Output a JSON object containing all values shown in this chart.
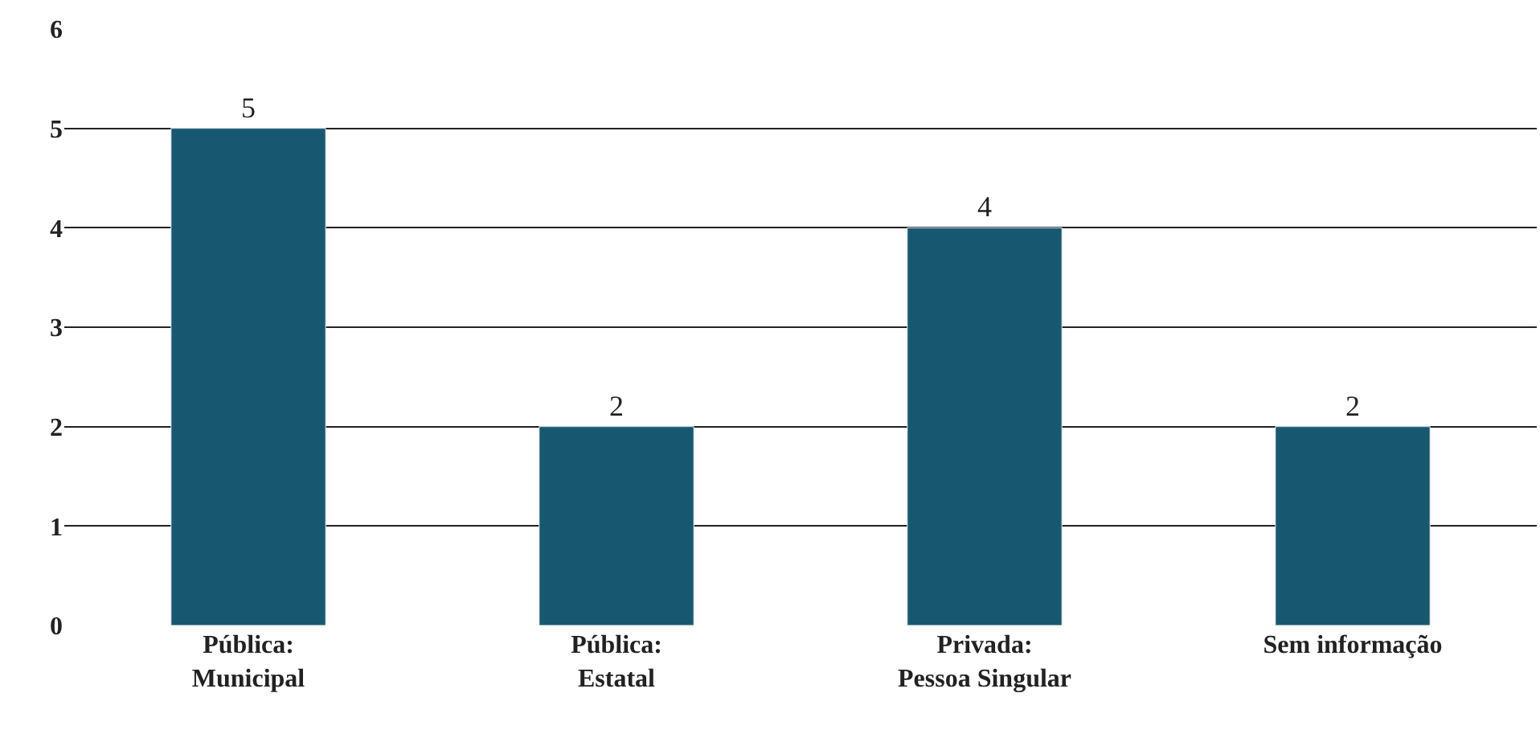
{
  "chart_data": {
    "type": "bar",
    "categories": [
      "Pública:\nMunicipal",
      "Pública:\nEstatal",
      "Privada:\nPessoa Singular",
      "Sem informação"
    ],
    "values": [
      5,
      2,
      4,
      2
    ],
    "color": "#175870",
    "ylim": [
      0,
      6
    ],
    "yticks": [
      0,
      1,
      2,
      3,
      4,
      5,
      6
    ],
    "grid": "y",
    "data_labels": true,
    "legend": false
  }
}
